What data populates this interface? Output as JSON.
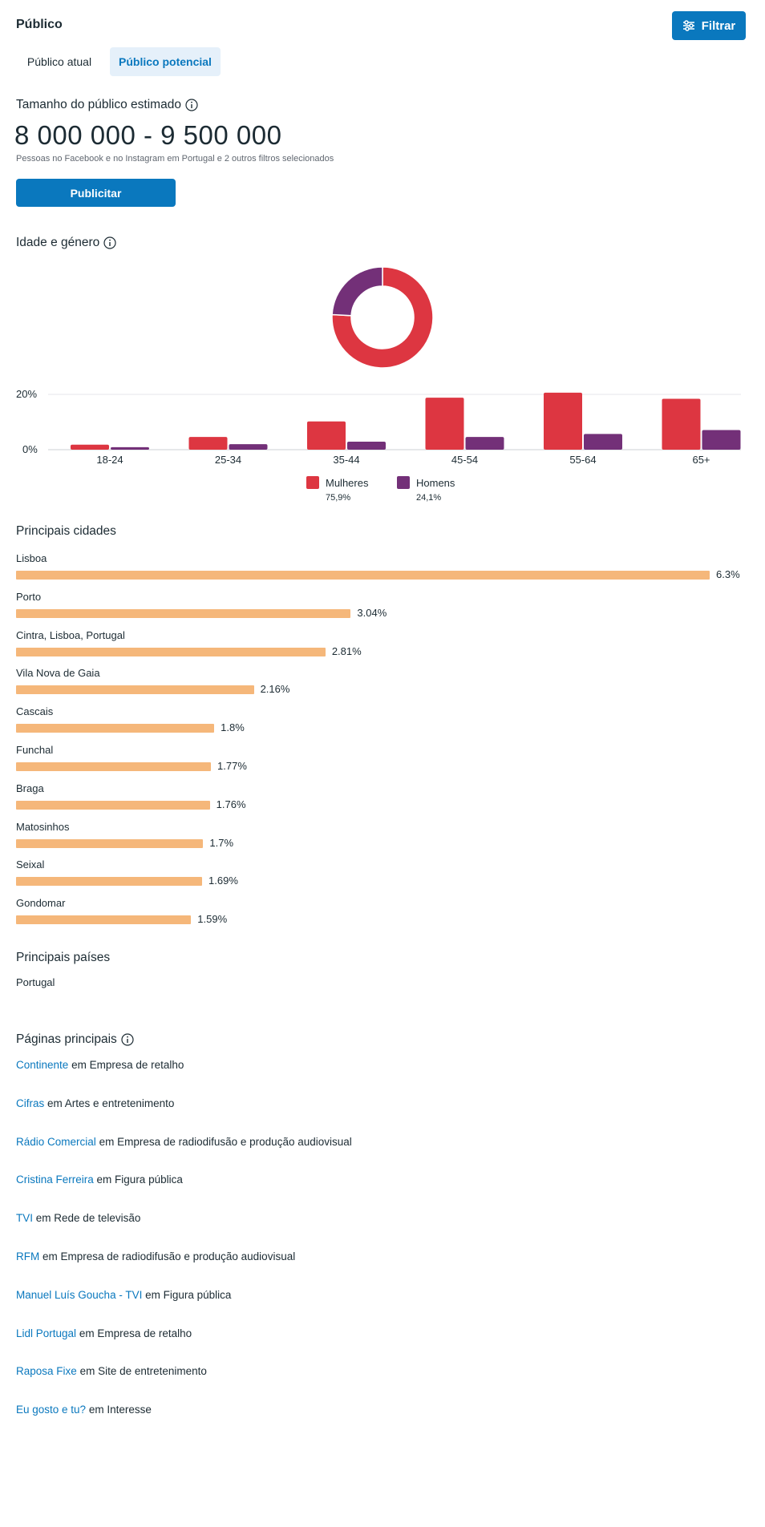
{
  "header": {
    "title": "Público",
    "filter_label": "Filtrar"
  },
  "tabs": [
    {
      "label": "Público atual",
      "selected": false
    },
    {
      "label": "Público potencial",
      "selected": true
    }
  ],
  "audience_size": {
    "heading": "Tamanho do público estimado",
    "value": "8 000 000 - 9 500 000",
    "description": "Pessoas no Facebook e no Instagram em Portugal e 2 outros filtros selecionados",
    "publish_label": "Publicitar"
  },
  "age_gender": {
    "heading": "Idade e género",
    "chart_data": {
      "type": "bar",
      "categories": [
        "18-24",
        "25-34",
        "35-44",
        "45-54",
        "55-64",
        "65+"
      ],
      "series": [
        {
          "name": "Mulheres",
          "color": "#dd3641",
          "values": [
            1.8,
            4.6,
            10.2,
            18.8,
            20.6,
            18.4
          ]
        },
        {
          "name": "Homens",
          "color": "#733078",
          "values": [
            0.9,
            2.0,
            2.9,
            4.6,
            5.7,
            7.1
          ]
        }
      ],
      "y_ticks": [
        "20%",
        "0%"
      ],
      "ylim": [
        0,
        20
      ],
      "legend": [
        {
          "name": "Mulheres",
          "pct": "75,9%"
        },
        {
          "name": "Homens",
          "pct": "24,1%"
        }
      ],
      "donut": [
        {
          "name": "Mulheres",
          "value": 75.9,
          "color": "#dd3641"
        },
        {
          "name": "Homens",
          "value": 24.1,
          "color": "#733078"
        }
      ]
    }
  },
  "cities": {
    "heading": "Principais cidades",
    "bar_color": "#f5b77a",
    "max_value": 6.3,
    "items": [
      {
        "name": "Lisboa",
        "value": 6.3,
        "pct_label": "6.3%"
      },
      {
        "name": "Porto",
        "value": 3.04,
        "pct_label": "3.04%"
      },
      {
        "name": "Cintra, Lisboa, Portugal",
        "value": 2.81,
        "pct_label": "2.81%"
      },
      {
        "name": "Vila Nova de Gaia",
        "value": 2.16,
        "pct_label": "2.16%"
      },
      {
        "name": "Cascais",
        "value": 1.8,
        "pct_label": "1.8%"
      },
      {
        "name": "Funchal",
        "value": 1.77,
        "pct_label": "1.77%"
      },
      {
        "name": "Braga",
        "value": 1.76,
        "pct_label": "1.76%"
      },
      {
        "name": "Matosinhos",
        "value": 1.7,
        "pct_label": "1.7%"
      },
      {
        "name": "Seixal",
        "value": 1.69,
        "pct_label": "1.69%"
      },
      {
        "name": "Gondomar",
        "value": 1.59,
        "pct_label": "1.59%"
      }
    ]
  },
  "countries": {
    "heading": "Principais países",
    "items": [
      "Portugal"
    ]
  },
  "pages": {
    "heading": "Páginas principais",
    "items": [
      {
        "name": "Continente",
        "category": "em Empresa de retalho"
      },
      {
        "name": "Cifras",
        "category": "em Artes e entretenimento"
      },
      {
        "name": "Rádio Comercial",
        "category": "em Empresa de radiodifusão e produção audiovisual"
      },
      {
        "name": "Cristina Ferreira",
        "category": "em Figura pública"
      },
      {
        "name": "TVI",
        "category": "em Rede de televisão"
      },
      {
        "name": "RFM",
        "category": "em Empresa de radiodifusão e produção audiovisual"
      },
      {
        "name": "Manuel Luís Goucha - TVI",
        "category": "em Figura pública"
      },
      {
        "name": "Lidl Portugal",
        "category": "em Empresa de retalho"
      },
      {
        "name": "Raposa Fixe",
        "category": "em Site de entretenimento"
      },
      {
        "name": "Eu gosto e tu?",
        "category": "em Interesse"
      }
    ]
  },
  "icons": {
    "info": "info-icon",
    "filter": "sliders-icon"
  }
}
